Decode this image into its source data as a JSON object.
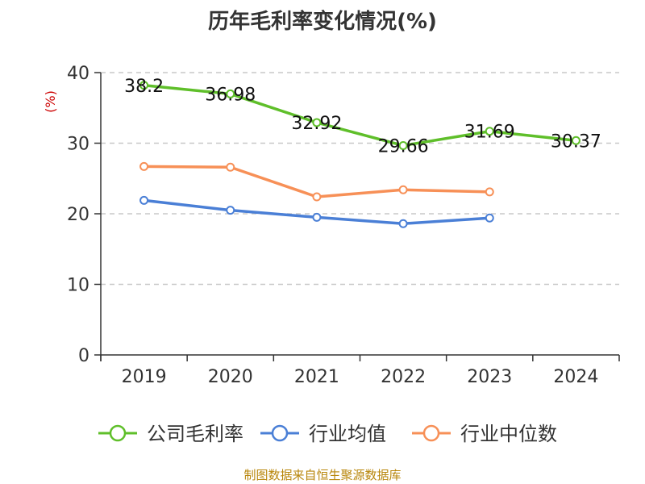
{
  "chart_data": {
    "type": "line",
    "title": "历年毛利率变化情况(%)",
    "ylabel": "(%)",
    "categories": [
      "2019",
      "2020",
      "2021",
      "2022",
      "2023",
      "2024"
    ],
    "ylim": [
      0,
      40
    ],
    "yticks": [
      0,
      10,
      20,
      30,
      40
    ],
    "grid": true,
    "legend_position": "bottom",
    "series": [
      {
        "name": "公司毛利率",
        "color": "#5fbf2a",
        "values": [
          38.2,
          36.98,
          32.92,
          29.66,
          31.69,
          30.37
        ],
        "labels": [
          "38.2",
          "36.98",
          "32.92",
          "29.66",
          "31.69",
          "30.37"
        ]
      },
      {
        "name": "行业均值",
        "color": "#4a7fd6",
        "values": [
          21.9,
          20.5,
          19.5,
          18.6,
          19.4,
          null
        ]
      },
      {
        "name": "行业中位数",
        "color": "#f79057",
        "values": [
          26.7,
          26.6,
          22.4,
          23.4,
          23.1,
          null
        ]
      }
    ],
    "source": "制图数据来自恒生聚源数据库"
  }
}
